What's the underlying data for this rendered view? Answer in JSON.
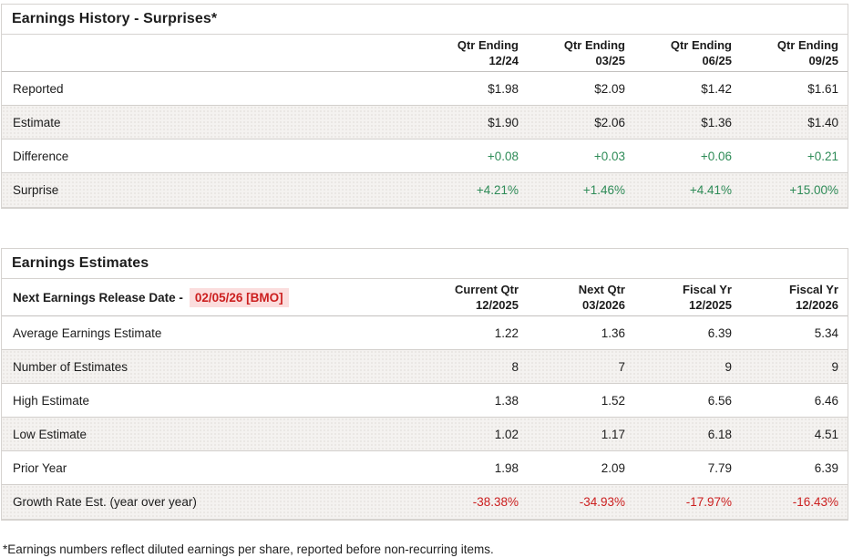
{
  "colors": {
    "green": "#2e8b57",
    "red": "#cc1f1f",
    "red_bg": "#fbdddd"
  },
  "history": {
    "title": "Earnings History - Surprises*",
    "col_headers": [
      {
        "line1": "Qtr Ending",
        "line2": "12/24"
      },
      {
        "line1": "Qtr Ending",
        "line2": "03/25"
      },
      {
        "line1": "Qtr Ending",
        "line2": "06/25"
      },
      {
        "line1": "Qtr Ending",
        "line2": "09/25"
      }
    ],
    "rows": [
      {
        "label": "Reported",
        "values": [
          "$1.98",
          "$2.09",
          "$1.42",
          "$1.61"
        ]
      },
      {
        "label": "Estimate",
        "values": [
          "$1.90",
          "$2.06",
          "$1.36",
          "$1.40"
        ]
      },
      {
        "label": "Difference",
        "values": [
          "+0.08",
          "+0.03",
          "+0.06",
          "+0.21"
        ]
      },
      {
        "label": "Surprise",
        "values": [
          "+4.21%",
          "+1.46%",
          "+4.41%",
          "+15.00%"
        ]
      }
    ]
  },
  "estimates": {
    "title": "Earnings Estimates",
    "release_label": "Next Earnings Release Date -",
    "release_date": "02/05/26 [BMO]",
    "col_headers": [
      {
        "line1": "Current Qtr",
        "line2": "12/2025"
      },
      {
        "line1": "Next Qtr",
        "line2": "03/2026"
      },
      {
        "line1": "Fiscal Yr",
        "line2": "12/2025"
      },
      {
        "line1": "Fiscal Yr",
        "line2": "12/2026"
      }
    ],
    "rows": [
      {
        "label": "Average Earnings Estimate",
        "values": [
          "1.22",
          "1.36",
          "6.39",
          "5.34"
        ]
      },
      {
        "label": "Number of Estimates",
        "values": [
          "8",
          "7",
          "9",
          "9"
        ]
      },
      {
        "label": "High Estimate",
        "values": [
          "1.38",
          "1.52",
          "6.56",
          "6.46"
        ]
      },
      {
        "label": "Low Estimate",
        "values": [
          "1.02",
          "1.17",
          "6.18",
          "4.51"
        ]
      },
      {
        "label": "Prior Year",
        "values": [
          "1.98",
          "2.09",
          "7.79",
          "6.39"
        ]
      },
      {
        "label": "Growth Rate Est. (year over year)",
        "values": [
          "-38.38%",
          "-34.93%",
          "-17.97%",
          "-16.43%"
        ]
      }
    ]
  },
  "footnote": "*Earnings numbers reflect diluted earnings per share, reported before non-recurring items."
}
